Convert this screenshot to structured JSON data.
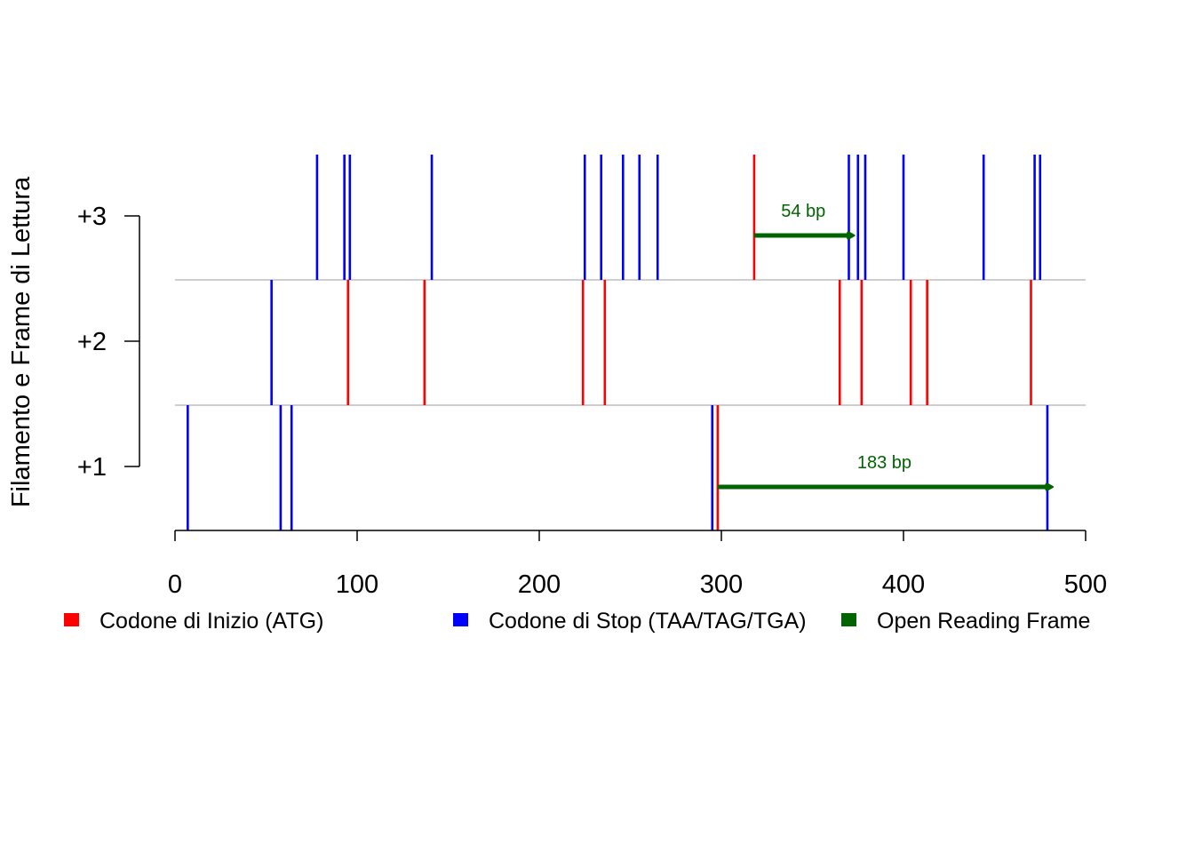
{
  "chart_data": {
    "type": "line",
    "ylabel": "Filamento e Frame di Lettura",
    "xlabel": "",
    "xlim": [
      0,
      500
    ],
    "x_ticks": [
      "0",
      "100",
      "200",
      "300",
      "400",
      "500"
    ],
    "y_ticks": [
      "+1",
      "+2",
      "+3"
    ],
    "grid": false,
    "frame_separators": true,
    "colors": {
      "start": "#ff0000",
      "stop": "#0000ff",
      "orf": "#006400",
      "separator": "#bebebe",
      "axis": "#000000"
    },
    "series": [
      {
        "name": "Codone di Inizio (ATG)",
        "marks": [
          {
            "frame": 2,
            "positions": [
              95,
              137,
              224,
              236,
              365,
              377,
              404,
              413,
              470
            ]
          },
          {
            "frame": 3,
            "positions": [
              318
            ]
          },
          {
            "frame": 1,
            "positions": [
              298
            ]
          }
        ]
      },
      {
        "name": "Codone di Stop (TAA/TAG/TGA)",
        "marks": [
          {
            "frame": 1,
            "positions": [
              7,
              58,
              64,
              295,
              479
            ]
          },
          {
            "frame": 2,
            "positions": [
              53
            ]
          },
          {
            "frame": 3,
            "positions": [
              78,
              93,
              96,
              141,
              225,
              234,
              246,
              255,
              265,
              370,
              375,
              379,
              400,
              444,
              472,
              475
            ]
          }
        ]
      },
      {
        "name": "Open Reading Frame",
        "orfs": [
          {
            "frame": 3,
            "start": 318,
            "end": 372,
            "label": "54 bp"
          },
          {
            "frame": 1,
            "start": 298,
            "end": 481,
            "label": "183 bp"
          }
        ]
      }
    ]
  },
  "legend": {
    "placement": "bottom",
    "items": [
      {
        "label": "Codone di Inizio (ATG)",
        "color": "#ff0000"
      },
      {
        "label": "Codone di Stop (TAA/TAG/TGA)",
        "color": "#0000ff"
      },
      {
        "label": "Open Reading Frame",
        "color": "#006400"
      }
    ]
  }
}
